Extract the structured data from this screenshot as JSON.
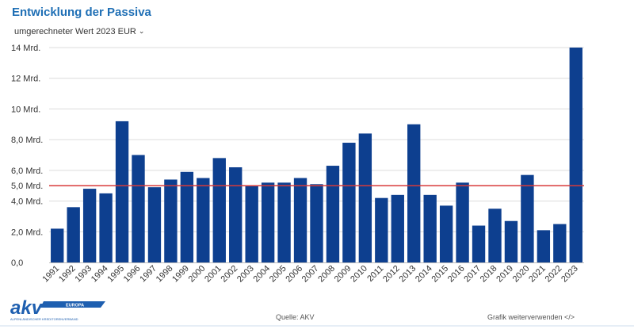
{
  "header": {
    "title": "Entwicklung der Passiva",
    "selector_value": "umgerechneter Wert 2023 EUR"
  },
  "footer": {
    "logo_text": "akv",
    "logo_tag": "EUROPA",
    "logo_subtext": "ALPENLÄNDISCHER KREDITORENVERBAND",
    "source_label": "Quelle: AKV",
    "reuse_link": "Grafik weiterverwenden </>"
  },
  "colors": {
    "title": "#1f6fb5",
    "bar": "#0d3f8f",
    "reference_line": "#d83a3a",
    "grid": "#dcdcdc",
    "logo": "#1e5fb0"
  },
  "chart_data": {
    "type": "bar",
    "categories": [
      "1991",
      "1992",
      "1993",
      "1994",
      "1995",
      "1996",
      "1997",
      "1998",
      "1999",
      "2000",
      "2001",
      "2002",
      "2003",
      "2004",
      "2005",
      "2006",
      "2007",
      "2008",
      "2009",
      "2010",
      "2011",
      "2012",
      "2013",
      "2014",
      "2015",
      "2016",
      "2017",
      "2018",
      "2019",
      "2020",
      "2021",
      "2022",
      "2023"
    ],
    "values": [
      2.2,
      3.6,
      4.8,
      4.5,
      9.2,
      7.0,
      4.9,
      5.4,
      5.9,
      5.5,
      6.8,
      6.2,
      5.0,
      5.2,
      5.2,
      5.5,
      5.1,
      6.3,
      7.8,
      8.4,
      4.2,
      4.4,
      9.0,
      4.4,
      3.7,
      5.2,
      2.4,
      3.5,
      2.7,
      5.7,
      2.1,
      2.5,
      14.0
    ],
    "ylim": [
      0,
      14
    ],
    "y_ticks": [
      {
        "value": 0,
        "label": "0,0"
      },
      {
        "value": 2,
        "label": "2,0 Mrd."
      },
      {
        "value": 4,
        "label": "4,0 Mrd."
      },
      {
        "value": 5,
        "label": "5,0 Mrd."
      },
      {
        "value": 6,
        "label": "6,0 Mrd."
      },
      {
        "value": 8,
        "label": "8,0 Mrd."
      },
      {
        "value": 10,
        "label": "10 Mrd."
      },
      {
        "value": 12,
        "label": "12 Mrd."
      },
      {
        "value": 14,
        "label": "14 Mrd."
      }
    ],
    "reference_line": {
      "value": 5.0
    },
    "grid": true,
    "legend": "none"
  }
}
